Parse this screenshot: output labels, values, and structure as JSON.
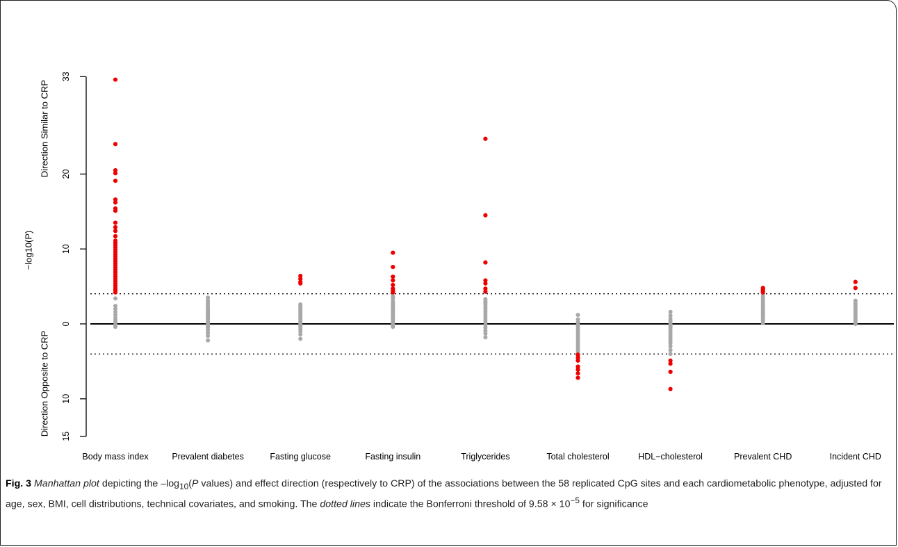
{
  "chart_data": {
    "type": "scatter",
    "ylabel": "−log10(P)",
    "ylabel_upper": "Direction Similar to CRP",
    "ylabel_lower": "Direction Opposite to CRP",
    "yticks_upper": [
      0,
      10,
      20,
      33
    ],
    "yticks_lower": [
      10,
      15
    ],
    "ylim": [
      -15,
      33
    ],
    "threshold": 4.02,
    "colors": {
      "significant": "#ee0000",
      "nonsignificant": "#a8a8a8",
      "line": "#000000"
    },
    "categories": [
      "Body mass index",
      "Prevalent diabetes",
      "Fasting glucose",
      "Fasting insulin",
      "Triglycerides",
      "Total cholesterol",
      "HDL−cholesterol",
      "Prevalent CHD",
      "Incident CHD"
    ],
    "series": [
      {
        "category": "Body mass index",
        "significant": [
          32.6,
          24,
          20.5,
          20.1,
          19.1,
          16.6,
          16.2,
          15.4,
          15.1,
          13.5,
          12.9,
          12.4,
          11.7,
          11.1,
          10.8,
          10.5,
          10.2,
          9.9,
          9.6,
          9.3,
          9.0,
          8.7,
          8.4,
          8.1,
          7.8,
          7.5,
          7.2,
          6.9,
          6.6,
          6.3,
          6.0,
          5.7,
          5.4,
          5.1,
          4.8,
          4.5,
          4.2
        ],
        "nonsignificant": [
          3.4,
          2.4,
          2.0,
          1.6,
          1.2,
          0.8,
          0.5,
          0.2,
          -0.1,
          -0.4
        ]
      },
      {
        "category": "Prevalent diabetes",
        "significant": [],
        "nonsignificant": [
          3.5,
          3.1,
          2.8,
          2.5,
          2.2,
          2.0,
          1.8,
          1.6,
          1.4,
          1.2,
          1.0,
          0.8,
          0.6,
          0.4,
          0.2,
          0.0,
          -0.2,
          -0.5,
          -0.8,
          -1.2,
          -1.6,
          -2.2
        ]
      },
      {
        "category": "Fasting glucose",
        "significant": [
          6.4,
          6.0,
          5.6,
          5.4
        ],
        "nonsignificant": [
          2.6,
          2.4,
          2.2,
          2.0,
          1.8,
          1.6,
          1.4,
          1.2,
          1.0,
          0.8,
          0.6,
          0.4,
          0.2,
          0.0,
          -0.2,
          -0.4,
          -0.7,
          -1.0,
          -1.4,
          -2.0
        ]
      },
      {
        "category": "Fasting insulin",
        "significant": [
          9.5,
          7.6,
          6.3,
          5.8,
          5.2,
          4.7,
          4.4,
          4.2
        ],
        "nonsignificant": [
          3.7,
          3.4,
          3.0,
          2.8,
          2.6,
          2.4,
          2.2,
          2.0,
          1.8,
          1.6,
          1.4,
          1.2,
          1.0,
          0.8,
          0.6,
          0.4,
          0.2,
          0.0,
          -0.2,
          -0.4
        ]
      },
      {
        "category": "Triglycerides",
        "significant": [
          24.7,
          14.5,
          8.2,
          5.8,
          5.4,
          4.7,
          4.3
        ],
        "nonsignificant": [
          3.3,
          3.0,
          2.8,
          2.6,
          2.3,
          2.0,
          1.7,
          1.4,
          1.1,
          0.8,
          0.5,
          0.2,
          -0.1,
          -0.5,
          -0.9,
          -1.3,
          -1.8
        ]
      },
      {
        "category": "Total cholesterol",
        "significant": [
          -4.1,
          -4.5,
          -4.9,
          -5.7,
          -6.1,
          -6.6,
          -7.2
        ],
        "nonsignificant": [
          1.2,
          0.6,
          0.2,
          -0.1,
          -0.4,
          -0.7,
          -1.0,
          -1.3,
          -1.6,
          -1.9,
          -2.2,
          -2.5,
          -2.8,
          -3.1,
          -3.4,
          -3.7
        ]
      },
      {
        "category": "HDL−cholesterol",
        "significant": [
          -4.9,
          -5.3,
          -6.4,
          -8.7
        ],
        "nonsignificant": [
          1.6,
          1.1,
          0.7,
          0.4,
          0.1,
          -0.1,
          -0.3,
          -0.5,
          -0.8,
          -1.1,
          -1.4,
          -1.7,
          -2.0,
          -2.3,
          -2.6,
          -3.0,
          -3.5,
          -4.0
        ]
      },
      {
        "category": "Prevalent CHD",
        "significant": [
          4.8,
          4.6,
          4.4,
          4.2
        ],
        "nonsignificant": [
          3.9,
          3.6,
          3.3,
          3.0,
          2.8,
          2.6,
          2.4,
          2.2,
          2.0,
          1.8,
          1.6,
          1.4,
          1.2,
          1.0,
          0.7,
          0.4,
          0.1
        ]
      },
      {
        "category": "Incident CHD",
        "significant": [
          5.6,
          4.8
        ],
        "nonsignificant": [
          3.1,
          2.8,
          2.6,
          2.4,
          2.2,
          2.0,
          1.8,
          1.6,
          1.4,
          1.2,
          1.0,
          0.8,
          0.6,
          0.4,
          0.2,
          0.0
        ]
      }
    ]
  },
  "caption": {
    "label": "Fig. 3",
    "p1": " ",
    "em1": "Manhattan plot",
    "p2": " depicting the –log",
    "sub1": "10",
    "p3": "(",
    "em2": "P",
    "p4": " values) and effect direction (respectively to CRP) of the associations between the 58 replicated CpG sites and each cardiometabolic phenotype, adjusted for age, sex, BMI, cell distributions, technical covariates, and smoking. The ",
    "em3": "dotted lines",
    "p5": " indicate the Bonferroni threshold of 9.58 × 10",
    "sup1": "−5",
    "p6": " for significance"
  }
}
